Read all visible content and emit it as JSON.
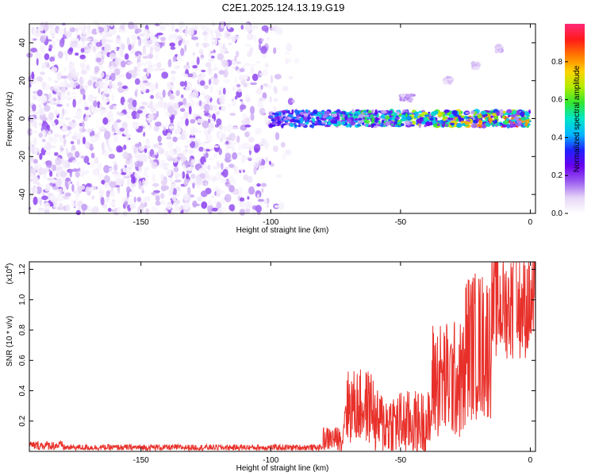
{
  "title": "C2E1.2025.124.13.19.G19",
  "chart_data": [
    {
      "type": "heatmap",
      "xlabel": "Height of straight line (km)",
      "ylabel": "Frequency (Hz)",
      "xlim": [
        -193,
        2
      ],
      "ylim": [
        -50,
        50
      ],
      "x_ticks": [
        -150,
        -100,
        -50,
        0
      ],
      "y_ticks": [
        -40,
        -20,
        0,
        20,
        40
      ],
      "grid": false,
      "colorbar": {
        "label": "Normalized spectral amplitude",
        "range": [
          0,
          1
        ],
        "ticks": [
          0.0,
          0.2,
          0.4,
          0.6,
          0.8
        ],
        "colors": [
          "#ffffff",
          "#e6d6f7",
          "#9b5cf0",
          "#6a00ee",
          "#2020ff",
          "#00b8ff",
          "#00e6c8",
          "#32e632",
          "#b4ec00",
          "#ffd200",
          "#ff7800",
          "#ff1a1a",
          "#ff2a78"
        ]
      },
      "regions": [
        {
          "name_hidden": true,
          "x_range": [
            -193,
            -88
          ],
          "y_range": [
            -50,
            50
          ],
          "amplitude_range": [
            0.02,
            0.2
          ],
          "pattern": "scattered noise"
        },
        {
          "x_range": [
            -100,
            0
          ],
          "center_frequency": 0,
          "half_width": 4,
          "amplitude_range": [
            0.1,
            0.95
          ],
          "pattern": "signal band"
        },
        {
          "x_range": [
            -50,
            -45
          ],
          "center_frequency": 11,
          "amplitude_range": [
            0.05,
            0.15
          ],
          "pattern": "faint harmonic"
        },
        {
          "x_range": [
            -33,
            -30
          ],
          "center_frequency": 20,
          "amplitude_range": [
            0.05,
            0.12
          ],
          "pattern": "faint harmonic"
        },
        {
          "x_range": [
            -22,
            -20
          ],
          "center_frequency": 28,
          "amplitude_range": [
            0.05,
            0.12
          ],
          "pattern": "faint harmonic"
        },
        {
          "x_range": [
            -13,
            -11
          ],
          "center_frequency": 37,
          "amplitude_range": [
            0.05,
            0.12
          ],
          "pattern": "faint harmonic"
        }
      ]
    },
    {
      "type": "line",
      "xlabel": "Height of straight line (km)",
      "ylabel": "SNR (10 * v/v)",
      "y_multiplier_label": "(x10",
      "y_multiplier_exp": "4",
      "y_multiplier_close": ")",
      "xlim": [
        -193,
        2
      ],
      "ylim": [
        0,
        1.25
      ],
      "x_ticks": [
        -150,
        -100,
        -50,
        0
      ],
      "y_ticks": [
        0.2,
        0.4,
        0.6,
        0.8,
        1.0,
        1.2
      ],
      "color": "#e8302a",
      "segments": [
        {
          "x_range": [
            -193,
            -180
          ],
          "baseline": 0.03,
          "noise": 0.03
        },
        {
          "x_range": [
            -180,
            -80
          ],
          "baseline": 0.02,
          "noise": 0.02
        },
        {
          "x_range": [
            -80,
            -72
          ],
          "baseline": 0.06,
          "noise": 0.08
        },
        {
          "x_range": [
            -72,
            -60
          ],
          "baseline": 0.22,
          "noise": 0.25
        },
        {
          "x_range": [
            -60,
            -38
          ],
          "baseline": 0.12,
          "noise": 0.22
        },
        {
          "x_range": [
            -38,
            -25
          ],
          "baseline": 0.35,
          "noise": 0.4
        },
        {
          "x_range": [
            -25,
            -15
          ],
          "baseline": 0.55,
          "noise": 0.5
        },
        {
          "x_range": [
            -15,
            2
          ],
          "baseline": 0.85,
          "noise": 0.35
        }
      ],
      "peak": {
        "x": -6,
        "y": 1.25
      }
    }
  ]
}
